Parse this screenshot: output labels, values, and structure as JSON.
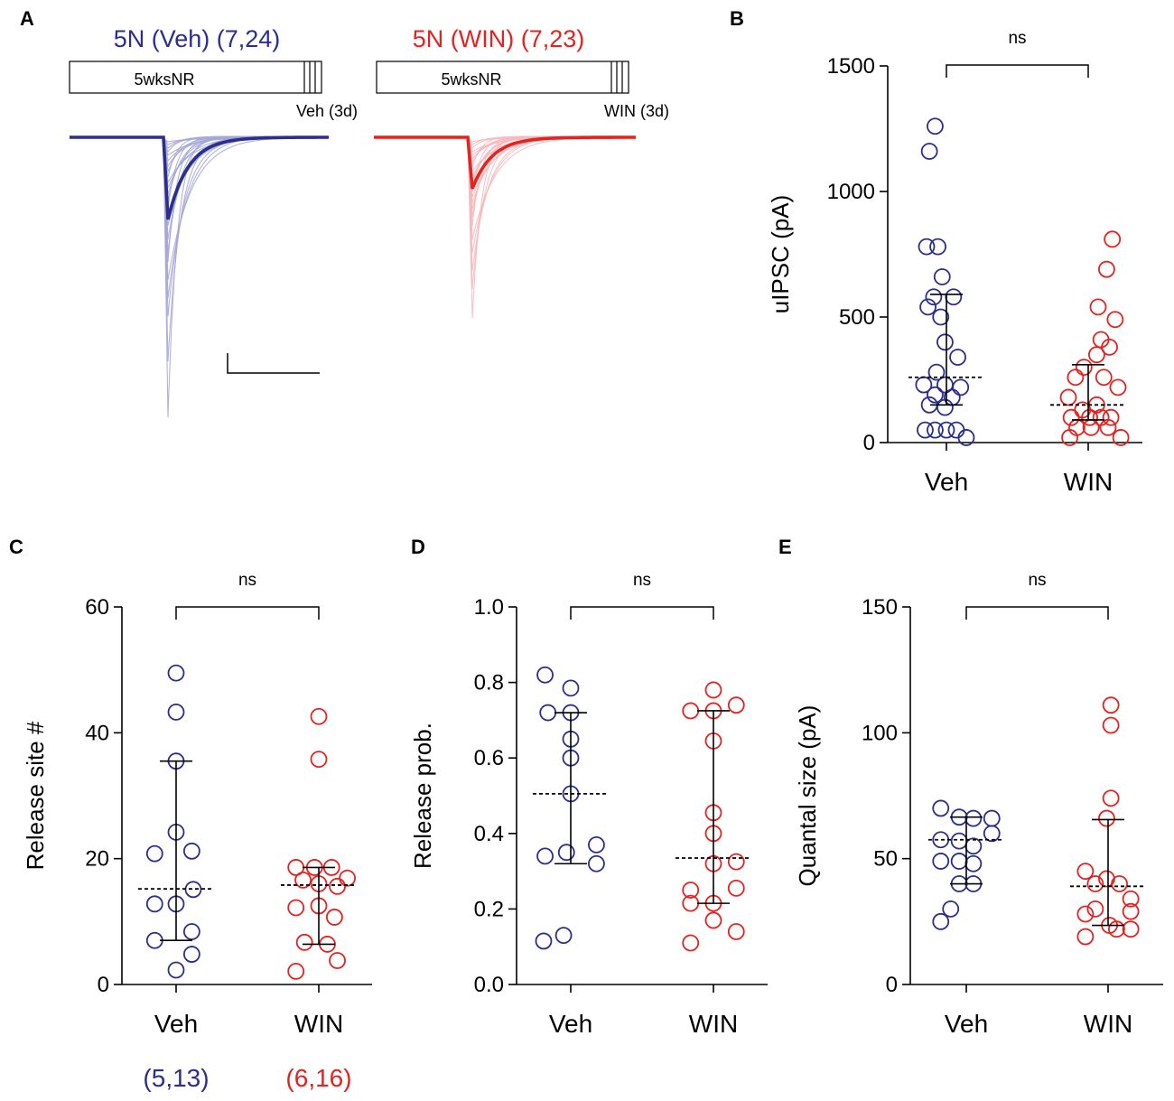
{
  "colors": {
    "veh": "#2b2e8c",
    "win": "#e42320",
    "veh_light": "#a3a6d6",
    "win_light": "#f6b8bd",
    "axis": "#000000"
  },
  "panel_a": {
    "letter": "A",
    "veh": {
      "title": "5N (Veh) (7,24)",
      "bar_label": "5wksNR",
      "treatment_label": "Veh (3d)"
    },
    "win": {
      "title": "5N (WIN) (7,23)",
      "bar_label": "5wksNR",
      "treatment_label": "WIN (3d)"
    }
  },
  "chart_data": [
    {
      "panel": "B",
      "type": "scatter",
      "ylabel": "uIPSC (pA)",
      "ylim": [
        0,
        1500
      ],
      "yticks": [
        0,
        500,
        1000,
        1500
      ],
      "categories": [
        "Veh",
        "WIN"
      ],
      "significance": "ns",
      "series": [
        {
          "name": "Veh",
          "median": 260,
          "q1": 150,
          "q3": 590,
          "points": [
            [
              0.92,
              1260
            ],
            [
              0.88,
              1160
            ],
            [
              0.86,
              780
            ],
            [
              0.94,
              780
            ],
            [
              0.97,
              660
            ],
            [
              0.91,
              580
            ],
            [
              1.05,
              580
            ],
            [
              0.87,
              540
            ],
            [
              0.96,
              500
            ],
            [
              0.99,
              400
            ],
            [
              1.08,
              340
            ],
            [
              0.93,
              280
            ],
            [
              0.84,
              230
            ],
            [
              0.99,
              230
            ],
            [
              1.1,
              220
            ],
            [
              0.92,
              190
            ],
            [
              1.04,
              180
            ],
            [
              0.88,
              150
            ],
            [
              0.99,
              140
            ],
            [
              0.85,
              50
            ],
            [
              0.92,
              50
            ],
            [
              1.0,
              50
            ],
            [
              1.07,
              50
            ],
            [
              1.14,
              20
            ]
          ]
        },
        {
          "name": "WIN",
          "median": 150,
          "q1": 90,
          "q3": 310,
          "points": [
            [
              2.17,
              810
            ],
            [
              2.13,
              690
            ],
            [
              2.07,
              540
            ],
            [
              2.19,
              490
            ],
            [
              2.09,
              410
            ],
            [
              2.15,
              380
            ],
            [
              2.06,
              350
            ],
            [
              1.97,
              300
            ],
            [
              1.91,
              260
            ],
            [
              2.11,
              260
            ],
            [
              2.21,
              220
            ],
            [
              1.86,
              180
            ],
            [
              2.06,
              150
            ],
            [
              1.96,
              130
            ],
            [
              1.88,
              100
            ],
            [
              2.01,
              100
            ],
            [
              2.09,
              100
            ],
            [
              2.16,
              100
            ],
            [
              1.92,
              60
            ],
            [
              2.02,
              60
            ],
            [
              2.14,
              60
            ],
            [
              1.87,
              20
            ],
            [
              2.23,
              20
            ]
          ]
        }
      ]
    },
    {
      "panel": "C",
      "type": "scatter",
      "ylabel": "Release site #",
      "ylim": [
        0,
        60
      ],
      "yticks": [
        0,
        20,
        40,
        60
      ],
      "categories": [
        "Veh",
        "WIN"
      ],
      "significance": "ns",
      "group_counts": [
        "(5,13)",
        "(6,16)"
      ],
      "series": [
        {
          "name": "Veh",
          "median": 15.2,
          "q1": 7.0,
          "q3": 35.5,
          "points": [
            [
              1.0,
              49.5
            ],
            [
              1.0,
              43.3
            ],
            [
              1.0,
              35.5
            ],
            [
              1.0,
              24.2
            ],
            [
              0.85,
              20.8
            ],
            [
              1.11,
              21.2
            ],
            [
              0.85,
              12.8
            ],
            [
              1.12,
              15.1
            ],
            [
              1.0,
              12.8
            ],
            [
              1.11,
              8.4
            ],
            [
              0.85,
              7.0
            ],
            [
              1.11,
              4.8
            ],
            [
              1.0,
              2.3
            ]
          ]
        },
        {
          "name": "WIN",
          "median": 15.8,
          "q1": 6.4,
          "q3": 18.6,
          "points": [
            [
              2.0,
              42.6
            ],
            [
              2.0,
              35.8
            ],
            [
              1.84,
              18.6
            ],
            [
              1.97,
              18.6
            ],
            [
              2.09,
              18.6
            ],
            [
              2.2,
              16.9
            ],
            [
              1.89,
              16.6
            ],
            [
              2.0,
              16.0
            ],
            [
              2.13,
              15.6
            ],
            [
              1.84,
              12.2
            ],
            [
              2.0,
              12.5
            ],
            [
              2.11,
              10.7
            ],
            [
              1.9,
              6.7
            ],
            [
              2.06,
              6.4
            ],
            [
              2.13,
              3.8
            ],
            [
              1.84,
              2.1
            ]
          ]
        }
      ]
    },
    {
      "panel": "D",
      "type": "scatter",
      "ylabel": "Release prob.",
      "ylim": [
        0,
        1.0
      ],
      "yticks": [
        0.0,
        0.2,
        0.4,
        0.6,
        0.8,
        1.0
      ],
      "categories": [
        "Veh",
        "WIN"
      ],
      "significance": "ns",
      "series": [
        {
          "name": "Veh",
          "median": 0.505,
          "q1": 0.32,
          "q3": 0.72,
          "points": [
            [
              0.82,
              0.82
            ],
            [
              1.0,
              0.785
            ],
            [
              0.84,
              0.72
            ],
            [
              1.0,
              0.72
            ],
            [
              1.0,
              0.65
            ],
            [
              1.0,
              0.6
            ],
            [
              1.0,
              0.505
            ],
            [
              0.82,
              0.34
            ],
            [
              0.97,
              0.35
            ],
            [
              1.18,
              0.37
            ],
            [
              1.18,
              0.32
            ],
            [
              0.81,
              0.115
            ],
            [
              0.95,
              0.13
            ]
          ]
        },
        {
          "name": "WIN",
          "median": 0.335,
          "q1": 0.215,
          "q3": 0.725,
          "points": [
            [
              2.0,
              0.78
            ],
            [
              1.84,
              0.725
            ],
            [
              2.0,
              0.725
            ],
            [
              2.16,
              0.74
            ],
            [
              2.0,
              0.645
            ],
            [
              2.0,
              0.455
            ],
            [
              2.0,
              0.4
            ],
            [
              2.0,
              0.32
            ],
            [
              2.16,
              0.325
            ],
            [
              1.84,
              0.25
            ],
            [
              2.0,
              0.215
            ],
            [
              2.16,
              0.255
            ],
            [
              1.84,
              0.215
            ],
            [
              2.0,
              0.17
            ],
            [
              2.16,
              0.14
            ],
            [
              1.84,
              0.11
            ]
          ]
        }
      ]
    },
    {
      "panel": "E",
      "type": "scatter",
      "ylabel": "Quantal size (pA)",
      "ylim": [
        0,
        150
      ],
      "yticks": [
        0,
        50,
        100,
        150
      ],
      "categories": [
        "Veh",
        "WIN"
      ],
      "significance": "ns",
      "series": [
        {
          "name": "Veh",
          "median": 57.5,
          "q1": 40,
          "q3": 66.5,
          "points": [
            [
              0.82,
              70
            ],
            [
              0.95,
              66.5
            ],
            [
              1.05,
              66
            ],
            [
              1.18,
              66
            ],
            [
              1.18,
              60
            ],
            [
              0.82,
              57.5
            ],
            [
              0.95,
              57
            ],
            [
              1.05,
              55
            ],
            [
              0.82,
              49
            ],
            [
              0.95,
              49
            ],
            [
              1.05,
              48
            ],
            [
              0.95,
              40
            ],
            [
              1.05,
              40
            ],
            [
              0.89,
              30
            ],
            [
              0.82,
              25
            ]
          ]
        },
        {
          "name": "WIN",
          "median": 39,
          "q1": 23.5,
          "q3": 65.5,
          "points": [
            [
              2.02,
              111
            ],
            [
              2.02,
              103
            ],
            [
              2.02,
              74
            ],
            [
              1.99,
              66
            ],
            [
              1.84,
              45
            ],
            [
              1.99,
              42
            ],
            [
              1.91,
              40
            ],
            [
              2.08,
              40
            ],
            [
              2.16,
              34
            ],
            [
              1.91,
              30
            ],
            [
              2.16,
              29
            ],
            [
              1.84,
              28
            ],
            [
              2.01,
              23.5
            ],
            [
              1.84,
              19
            ],
            [
              2.06,
              22
            ],
            [
              2.16,
              22
            ]
          ]
        }
      ]
    }
  ]
}
